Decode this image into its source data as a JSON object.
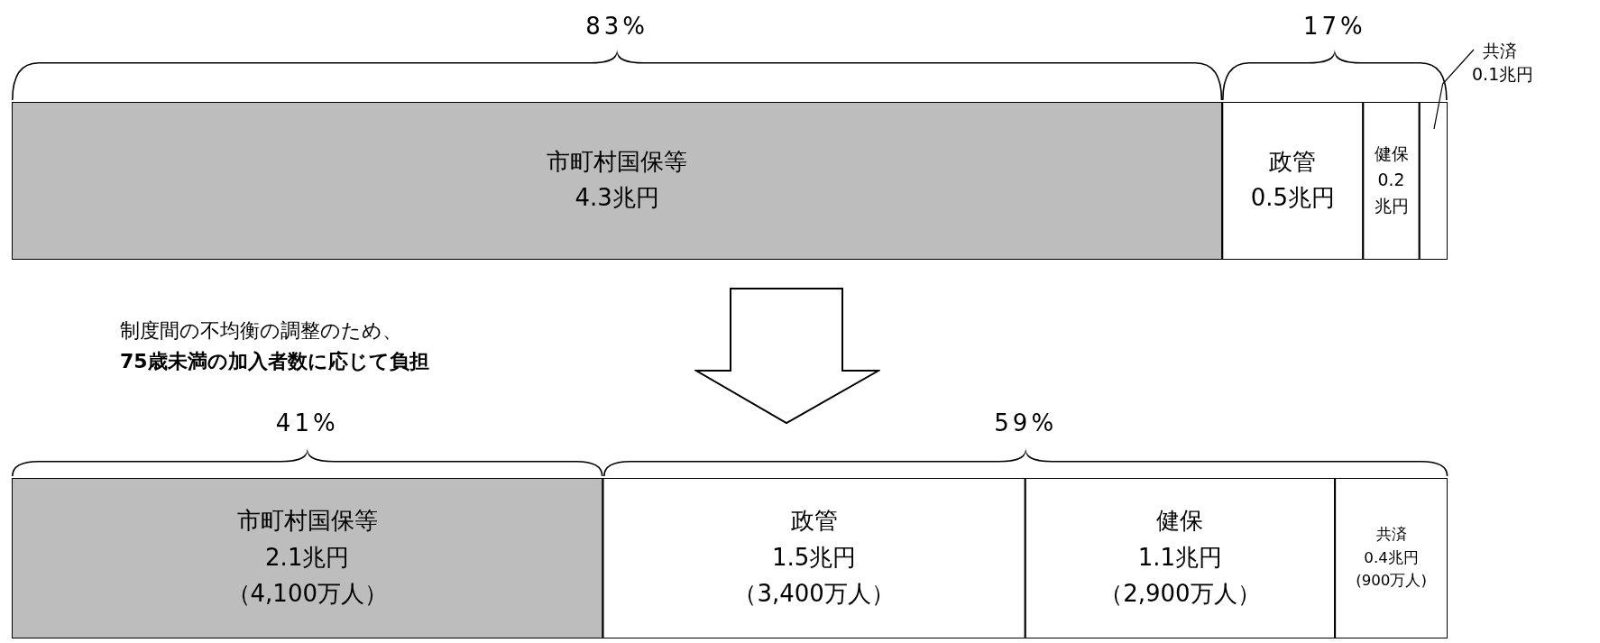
{
  "chart_data": [
    {
      "type": "bar",
      "orientation": "horizontal",
      "stacked": true,
      "categories": [
        null
      ],
      "xlim": [
        0,
        5.1
      ],
      "tick_labels": false,
      "legend": false,
      "series": [
        {
          "name": "市町村国保等",
          "color": "#bdbdbd",
          "values": [
            4.3
          ],
          "value_labels": [
            "4.3兆円"
          ]
        },
        {
          "name": "政管",
          "color": "#ffffff",
          "values": [
            0.5
          ],
          "value_labels": [
            "0.5兆円"
          ]
        },
        {
          "name": "健保",
          "color": "#ffffff",
          "values": [
            0.2
          ],
          "value_labels": [
            "0.2兆円"
          ]
        },
        {
          "name": "共済",
          "color": "#ffffff",
          "values": [
            0.1
          ],
          "value_labels": [
            "0.1兆円"
          ]
        }
      ],
      "annotations": [
        "83%",
        "17%"
      ]
    },
    {
      "type": "bar",
      "orientation": "horizontal",
      "stacked": true,
      "categories": [
        null
      ],
      "xlim": [
        0,
        5.1
      ],
      "tick_labels": false,
      "legend": false,
      "series": [
        {
          "name": "市町村国保等",
          "color": "#bdbdbd",
          "values": [
            2.1
          ],
          "value_labels": [
            "2.1兆円（4,100万人）"
          ]
        },
        {
          "name": "政管",
          "color": "#ffffff",
          "values": [
            1.5
          ],
          "value_labels": [
            "1.5兆円（3,400万人）"
          ]
        },
        {
          "name": "健保",
          "color": "#ffffff",
          "values": [
            1.1
          ],
          "value_labels": [
            "1.1兆円（2,900万人）"
          ]
        },
        {
          "name": "共済",
          "color": "#ffffff",
          "values": [
            0.4
          ],
          "value_labels": [
            "0.4兆円(900万人)"
          ]
        }
      ],
      "annotations": [
        "41%",
        "59%",
        "制度間の不均衡の調整のため、\n75歳未満の加入者数に応じて負担"
      ]
    }
  ]
}
